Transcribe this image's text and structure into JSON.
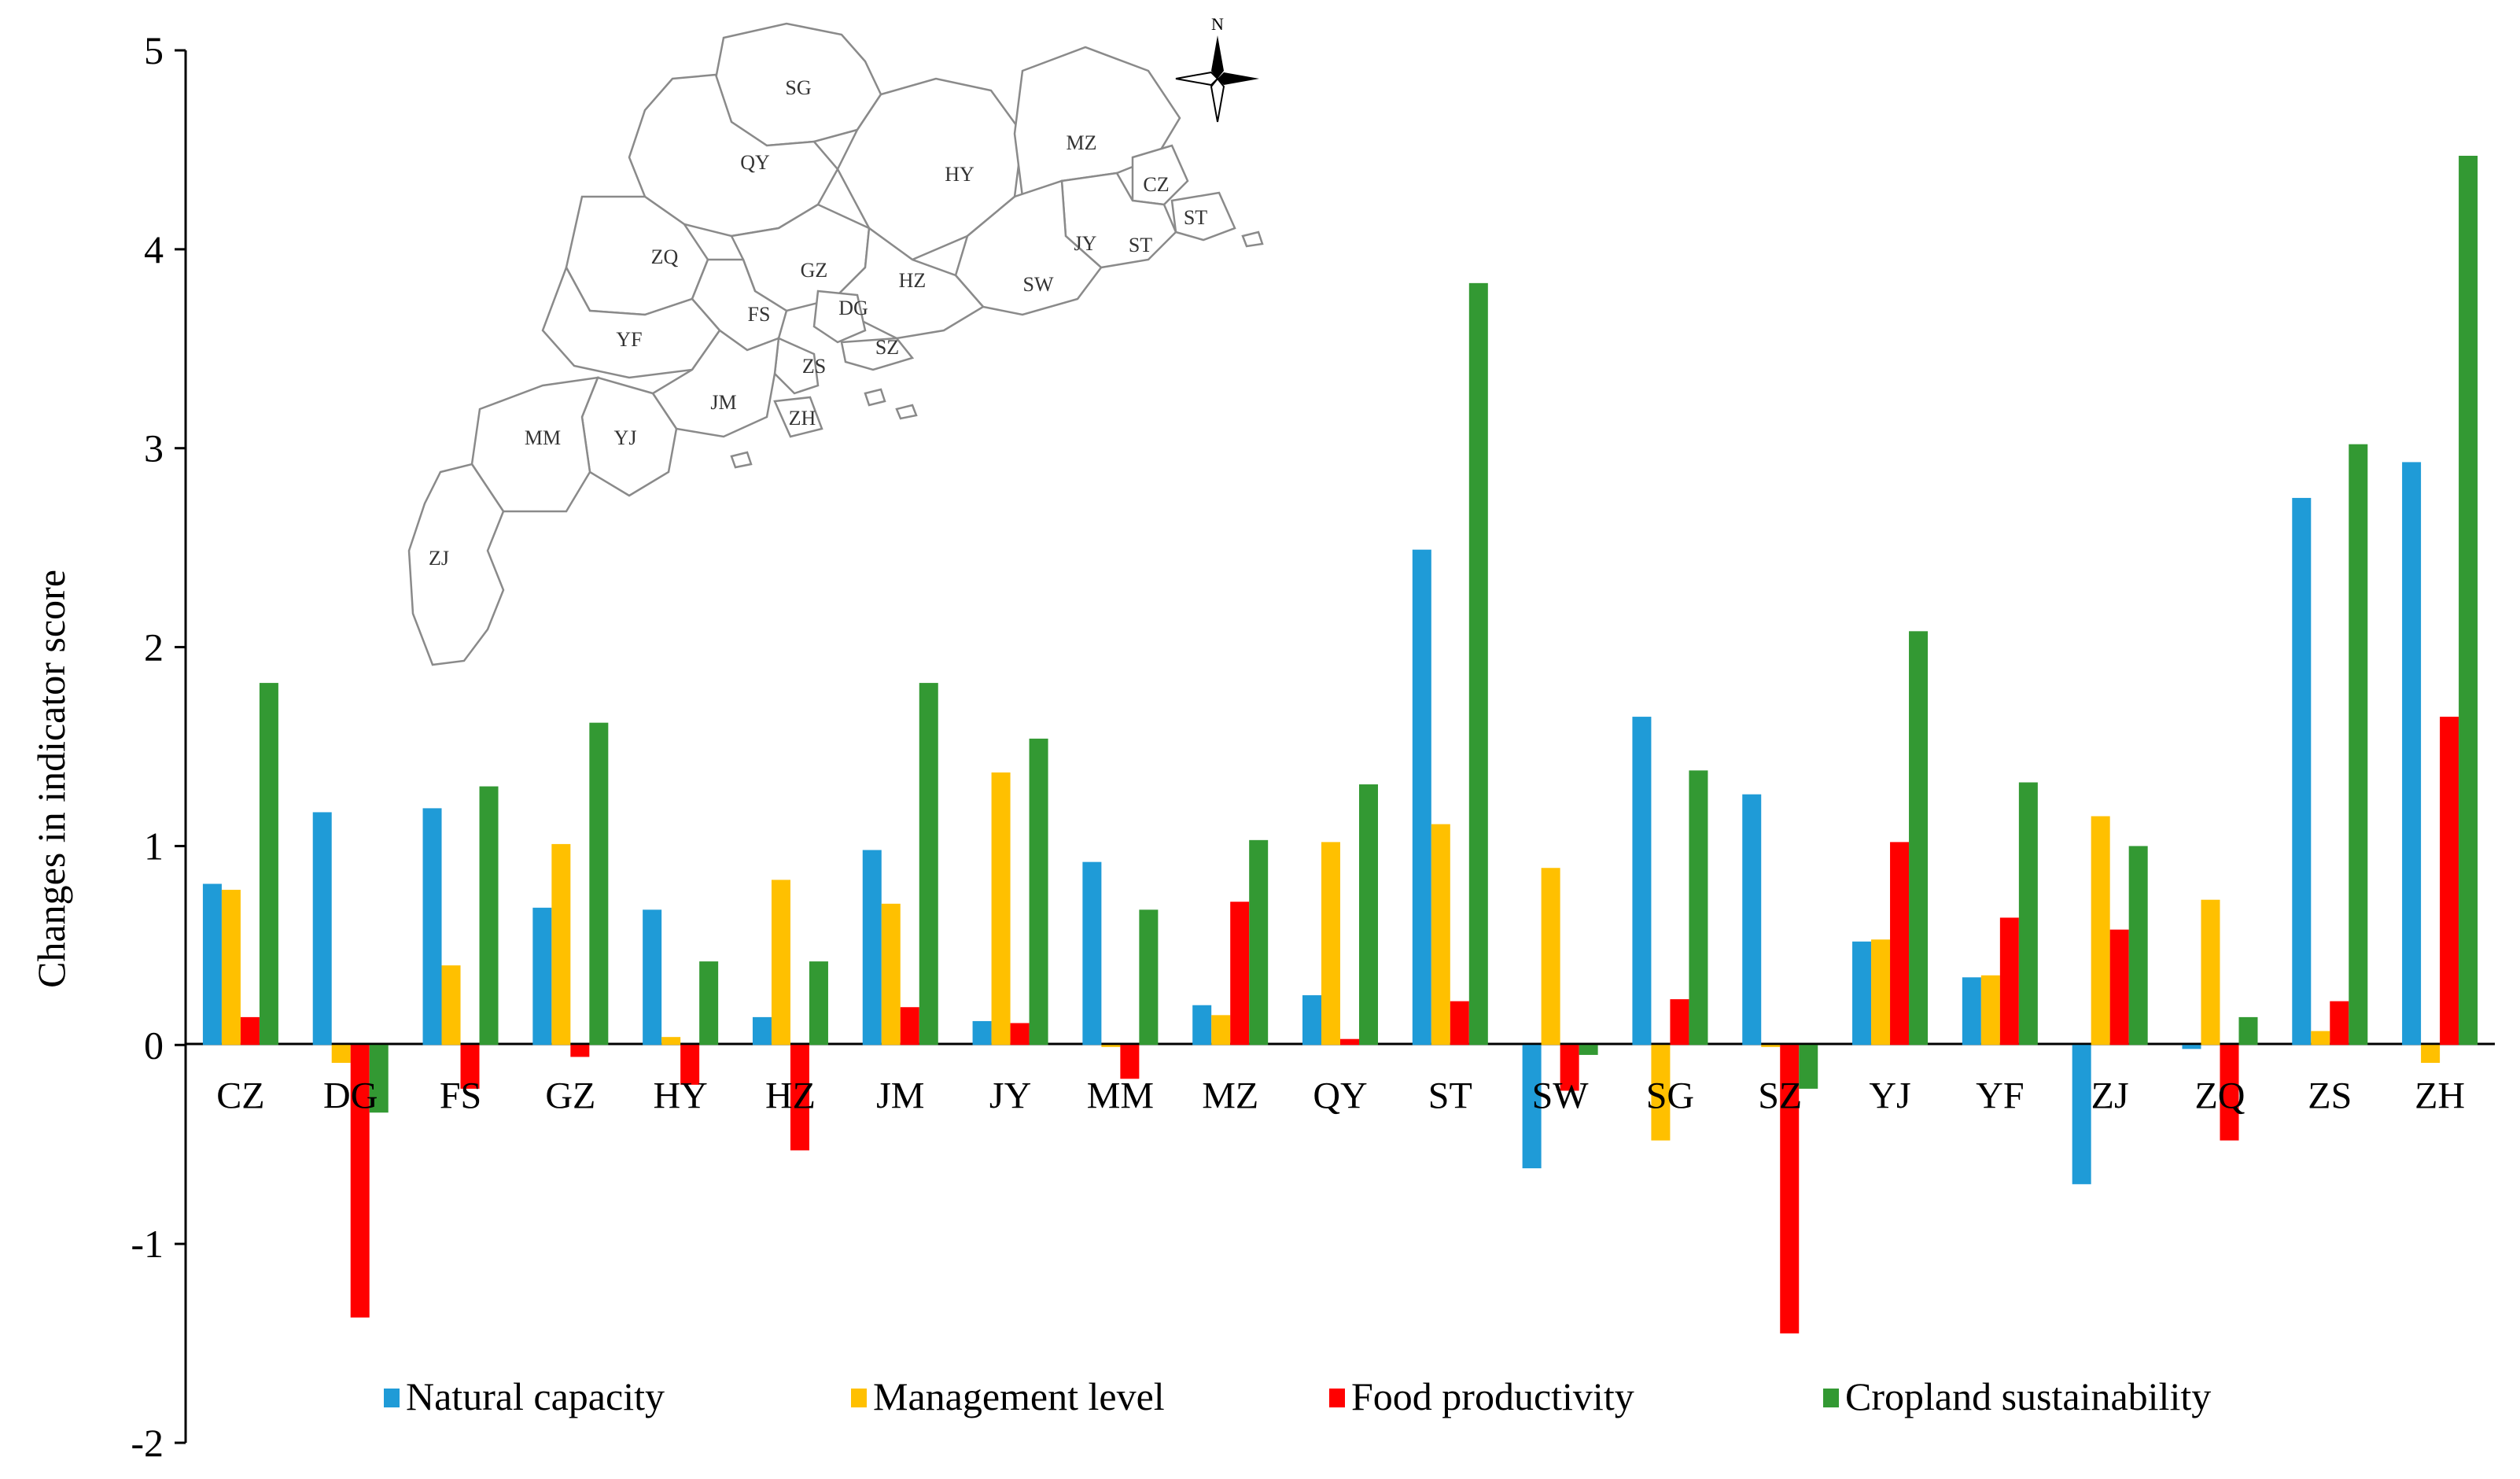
{
  "chart_data": {
    "type": "bar",
    "title": "",
    "xlabel": "",
    "ylabel": "Changes in  indicator score",
    "ylim": [
      -2,
      5
    ],
    "yticks": [
      "5",
      "4",
      "3",
      "2",
      "1",
      "0",
      "-1",
      "-2"
    ],
    "grid": false,
    "legend_position": "bottom",
    "categories": [
      "CZ",
      "DG",
      "FS",
      "GZ",
      "HY",
      "HZ",
      "JM",
      "JY",
      "MM",
      "MZ",
      "QY",
      "ST",
      "SW",
      "SG",
      "SZ",
      "YJ",
      "YF",
      "ZJ",
      "ZQ",
      "ZS",
      "ZH"
    ],
    "series": [
      {
        "name": "Natural capacity",
        "color": "#1f9bd7",
        "values": [
          0.81,
          1.17,
          1.19,
          0.69,
          0.68,
          0.14,
          0.98,
          0.12,
          0.92,
          0.2,
          0.25,
          2.49,
          -0.62,
          1.65,
          1.26,
          0.52,
          0.34,
          -0.7,
          -0.02,
          2.75,
          2.93
        ]
      },
      {
        "name": "Management level",
        "color": "#ffc000",
        "values": [
          0.78,
          -0.09,
          0.4,
          1.01,
          0.04,
          0.83,
          0.71,
          1.37,
          -0.01,
          0.15,
          1.02,
          1.11,
          0.89,
          -0.48,
          -0.01,
          0.53,
          0.35,
          1.15,
          0.73,
          0.07,
          -0.09
        ]
      },
      {
        "name": "Food productivity",
        "color": "#ff0000",
        "values": [
          0.14,
          -1.37,
          -0.22,
          -0.06,
          -0.2,
          -0.53,
          0.19,
          0.11,
          -0.17,
          0.72,
          0.03,
          0.22,
          -0.23,
          0.23,
          -1.45,
          1.02,
          0.64,
          0.58,
          -0.48,
          0.22,
          1.65
        ]
      },
      {
        "name": "Cropland sustainability",
        "color": "#339933",
        "values": [
          1.82,
          -0.34,
          1.3,
          1.62,
          0.42,
          0.42,
          1.82,
          1.54,
          0.68,
          1.03,
          1.31,
          3.83,
          -0.05,
          1.38,
          -0.22,
          2.08,
          1.32,
          1.0,
          0.14,
          3.02,
          4.47
        ]
      }
    ],
    "map_inset": {
      "north_label": "N",
      "regions": [
        "SG",
        "QY",
        "HY",
        "MZ",
        "CZ",
        "ST",
        "ST",
        "JY",
        "SW",
        "ZQ",
        "GZ",
        "HZ",
        "DG",
        "FS",
        "SZ",
        "YF",
        "ZS",
        "JM",
        "ZH",
        "MM",
        "YJ",
        "ZJ"
      ]
    }
  }
}
